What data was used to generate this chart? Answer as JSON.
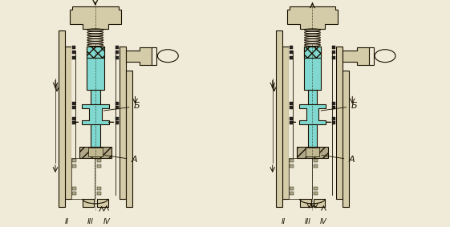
{
  "bg_color": "#f0ead8",
  "wall_color": "#d4cba8",
  "line_color": "#1a1000",
  "cyan_color": "#80d8d0",
  "cyan_light": "#a8e8e0",
  "knob_color": "#e0d8b8",
  "label_B": "Б",
  "label_A": "А",
  "label_II": "II",
  "label_III": "III",
  "label_IV": "IV",
  "figsize": [
    5.61,
    2.83
  ],
  "dpi": 100
}
